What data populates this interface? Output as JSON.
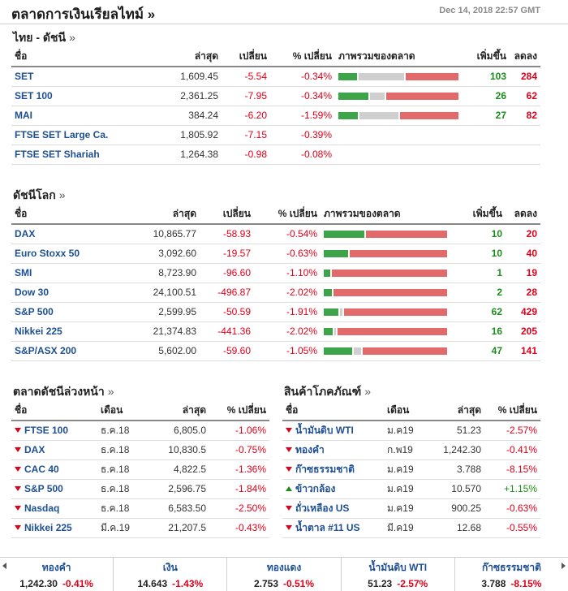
{
  "header": {
    "title": "ตลาดการเงินเรียลไทม์ »",
    "timestamp": "Dec 14, 2018 22:57 GMT"
  },
  "thai": {
    "title": "ไทย - ดัชนี",
    "arrow": "»",
    "columns": {
      "name": "ชื่อ",
      "last": "ล่าสุด",
      "change": "เปลี่ยน",
      "pct": "% เปลี่ยน",
      "overview": "ภาพรวมของตลาด",
      "adv": "เพิ่มขึ้น",
      "dec": "ลดลง"
    },
    "rows": [
      {
        "name": "SET",
        "last": "1,609.45",
        "change": "-5.54",
        "pct": "-0.34%",
        "adv": "103",
        "dec": "284",
        "breadth": {
          "up": 103,
          "unch": 247,
          "down": 284
        }
      },
      {
        "name": "SET 100",
        "last": "2,361.25",
        "change": "-7.95",
        "pct": "-0.34%",
        "adv": "26",
        "dec": "62",
        "breadth": {
          "up": 26,
          "unch": 12,
          "down": 62
        }
      },
      {
        "name": "MAI",
        "last": "384.24",
        "change": "-6.20",
        "pct": "-1.59%",
        "adv": "27",
        "dec": "82",
        "breadth": {
          "up": 27,
          "unch": 55,
          "down": 82
        }
      },
      {
        "name": "FTSE SET Large Ca.",
        "last": "1,805.92",
        "change": "-7.15",
        "pct": "-0.39%"
      },
      {
        "name": "FTSE SET Shariah",
        "last": "1,264.38",
        "change": "-0.98",
        "pct": "-0.08%"
      }
    ]
  },
  "world": {
    "title": "ดัชนีโลก",
    "arrow": "»",
    "columns": {
      "name": "ชื่อ",
      "last": "ล่าสุด",
      "change": "เปลี่ยน",
      "pct": "% เปลี่ยน",
      "overview": "ภาพรวมของตลาด",
      "adv": "เพิ่มขึ้น",
      "dec": "ลดลง"
    },
    "rows": [
      {
        "name": "DAX",
        "last": "10,865.77",
        "change": "-58.93",
        "pct": "-0.54%",
        "adv": "10",
        "dec": "20",
        "breadth": {
          "up": 10,
          "unch": 0,
          "down": 20
        }
      },
      {
        "name": "Euro Stoxx 50",
        "last": "3,092.60",
        "change": "-19.57",
        "pct": "-0.63%",
        "adv": "10",
        "dec": "40",
        "breadth": {
          "up": 10,
          "unch": 0,
          "down": 40
        }
      },
      {
        "name": "SMI",
        "last": "8,723.90",
        "change": "-96.60",
        "pct": "-1.10%",
        "adv": "1",
        "dec": "19",
        "breadth": {
          "up": 1,
          "unch": 0,
          "down": 19
        }
      },
      {
        "name": "Dow 30",
        "last": "24,100.51",
        "change": "-496.87",
        "pct": "-2.02%",
        "adv": "2",
        "dec": "28",
        "breadth": {
          "up": 2,
          "unch": 0,
          "down": 28
        }
      },
      {
        "name": "S&P 500",
        "last": "2,599.95",
        "change": "-50.59",
        "pct": "-1.91%",
        "adv": "62",
        "dec": "429",
        "breadth": {
          "up": 62,
          "unch": 9,
          "down": 429
        }
      },
      {
        "name": "Nikkei 225",
        "last": "21,374.83",
        "change": "-441.36",
        "pct": "-2.02%",
        "adv": "16",
        "dec": "205",
        "breadth": {
          "up": 16,
          "unch": 4,
          "down": 205
        }
      },
      {
        "name": "S&P/ASX 200",
        "last": "5,602.00",
        "change": "-59.60",
        "pct": "-1.05%",
        "adv": "47",
        "dec": "141",
        "breadth": {
          "up": 47,
          "unch": 12,
          "down": 141
        }
      }
    ]
  },
  "futures": {
    "title": "ตลาดดัชนีล่วงหน้า",
    "arrow": "»",
    "columns": {
      "name": "ชื่อ",
      "month": "เดือน",
      "last": "ล่าสุด",
      "pct": "% เปลี่ยน"
    },
    "rows": [
      {
        "name": "FTSE 100",
        "month": "ธ.ค.18",
        "last": "6,805.0",
        "pct": "-1.06%",
        "dir": "down"
      },
      {
        "name": "DAX",
        "month": "ธ.ค.18",
        "last": "10,830.5",
        "pct": "-0.75%",
        "dir": "down"
      },
      {
        "name": "CAC 40",
        "month": "ธ.ค.18",
        "last": "4,822.5",
        "pct": "-1.36%",
        "dir": "down"
      },
      {
        "name": "S&P 500",
        "month": "ธ.ค.18",
        "last": "2,596.75",
        "pct": "-1.84%",
        "dir": "down"
      },
      {
        "name": "Nasdaq",
        "month": "ธ.ค.18",
        "last": "6,583.50",
        "pct": "-2.50%",
        "dir": "down"
      },
      {
        "name": "Nikkei 225",
        "month": "มี.ค.19",
        "last": "21,207.5",
        "pct": "-0.43%",
        "dir": "down"
      }
    ]
  },
  "commodities": {
    "title": "สินค้าโภคภัณฑ์",
    "arrow": "»",
    "columns": {
      "name": "ชื่อ",
      "month": "เดือน",
      "last": "ล่าสุด",
      "pct": "% เปลี่ยน"
    },
    "rows": [
      {
        "name": "น้ำมันดิบ WTI",
        "month": "ม.ค19",
        "last": "51.23",
        "pct": "-2.57%",
        "dir": "down"
      },
      {
        "name": "ทองคำ",
        "month": "ก.พ19",
        "last": "1,242.30",
        "pct": "-0.41%",
        "dir": "down"
      },
      {
        "name": "ก๊าซธรรมชาติ",
        "month": "ม.ค19",
        "last": "3.788",
        "pct": "-8.15%",
        "dir": "down"
      },
      {
        "name": "ข้าวกล้อง",
        "month": "ม.ค19",
        "last": "10.570",
        "pct": "+1.15%",
        "dir": "up"
      },
      {
        "name": "ถั่วเหลือง US",
        "month": "ม.ค19",
        "last": "900.25",
        "pct": "-0.63%",
        "dir": "down"
      },
      {
        "name": "น้ำตาล #11 US",
        "month": "มี.ค19",
        "last": "12.68",
        "pct": "-0.55%",
        "dir": "down"
      }
    ]
  },
  "ticker": [
    {
      "name": "ทองคำ",
      "value": "1,242.30",
      "change": "-0.41%"
    },
    {
      "name": "เงิน",
      "value": "14.643",
      "change": "-1.43%"
    },
    {
      "name": "ทองแดง",
      "value": "2.753",
      "change": "-0.51%"
    },
    {
      "name": "น้ำมันดิบ WTI",
      "value": "51.23",
      "change": "-2.57%"
    },
    {
      "name": "ก๊าซธรรมชาติ",
      "value": "3.788",
      "change": "-8.15%"
    }
  ],
  "colors": {
    "up": "#1a8c1a",
    "down": "#e0001a",
    "bar_up": "#3ea44a",
    "bar_unch": "#cfcfcf",
    "bar_down": "#e36a6a",
    "link": "#1d4f91"
  }
}
